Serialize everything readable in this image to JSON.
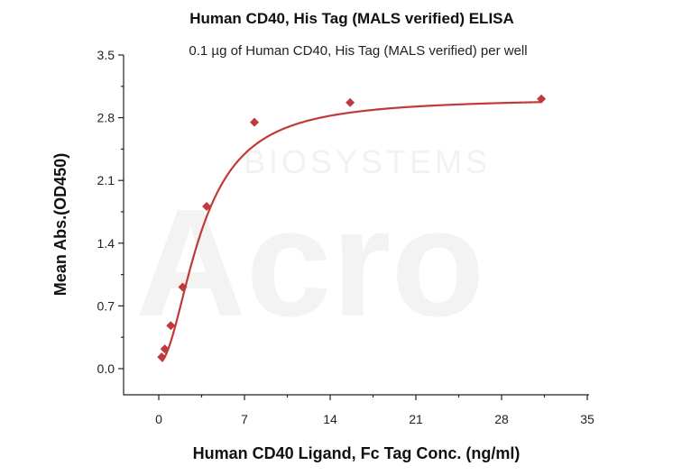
{
  "chart_data": {
    "type": "scatter",
    "title": "Human CD40, His Tag (MALS verified) ELISA",
    "subtitle": "0.1 µg of Human CD40, His Tag (MALS verified) per well",
    "xlabel": "Human CD40 Ligand, Fc Tag Conc. (ng/ml)",
    "ylabel": "Mean Abs.(OD450)",
    "xlim": [
      -3,
      35
    ],
    "ylim": [
      -0.15,
      3.5
    ],
    "x_ticks": [
      0,
      7,
      14,
      21,
      28,
      35
    ],
    "y_ticks": [
      0.0,
      0.7,
      1.4,
      2.1,
      2.8,
      3.5
    ],
    "x_tick_labels": [
      "0",
      "7",
      "14",
      "21",
      "28",
      "35"
    ],
    "y_tick_labels": [
      "0.0",
      "0.7",
      "1.4",
      "2.1",
      "2.8",
      "3.5"
    ],
    "grid": false,
    "series": [
      {
        "color": "#c0393b",
        "marker": "diamond",
        "points": [
          {
            "x": 0.24,
            "y": 0.13
          },
          {
            "x": 0.49,
            "y": 0.22
          },
          {
            "x": 0.98,
            "y": 0.48
          },
          {
            "x": 1.95,
            "y": 0.91
          },
          {
            "x": 3.91,
            "y": 1.81
          },
          {
            "x": 7.81,
            "y": 2.75
          },
          {
            "x": 15.63,
            "y": 2.97
          },
          {
            "x": 31.25,
            "y": 3.01
          }
        ]
      }
    ],
    "fit_curve": {
      "color": "#c0393b",
      "bottom": 0.06,
      "top": 3.02,
      "ec50": 3.5,
      "hill": 1.9
    }
  },
  "watermark": {
    "text": "BIOSYSTEMS",
    "logo_text": "Acro"
  }
}
